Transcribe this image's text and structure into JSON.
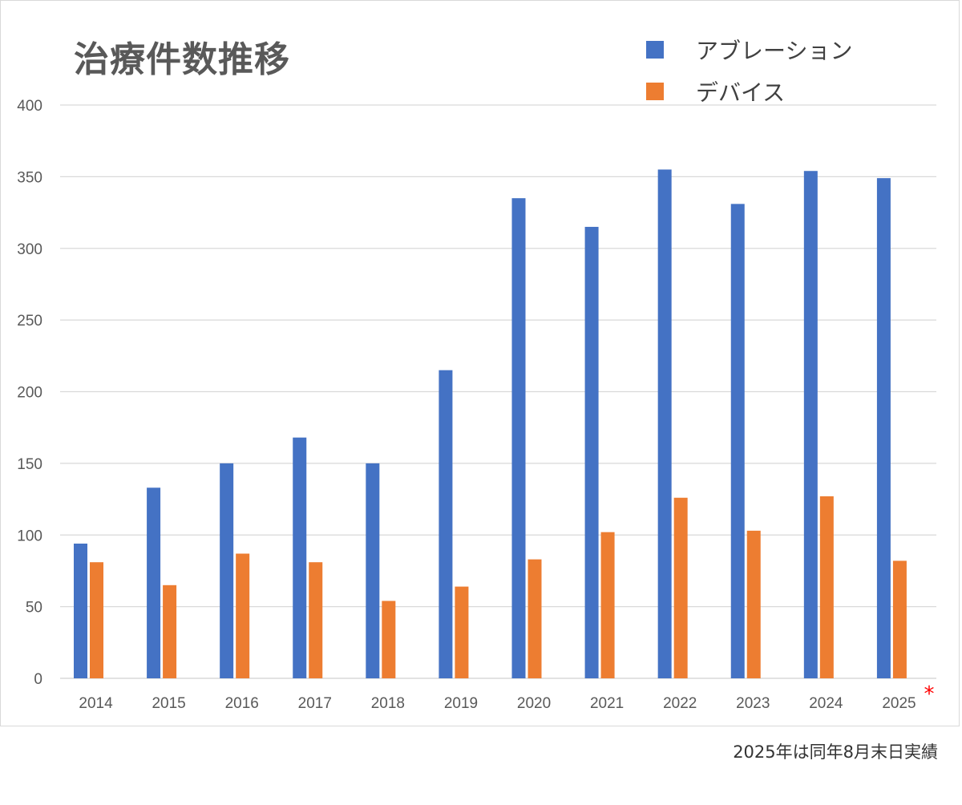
{
  "chart_data": {
    "type": "bar",
    "title": "治療件数推移",
    "categories": [
      "2014",
      "2015",
      "2016",
      "2017",
      "2018",
      "2019",
      "2020",
      "2021",
      "2022",
      "2023",
      "2024",
      "2025"
    ],
    "category_marks": {
      "2025": "*"
    },
    "series": [
      {
        "name": "アブレーション",
        "color": "#4472c4",
        "values": [
          94,
          133,
          150,
          168,
          150,
          215,
          335,
          315,
          355,
          331,
          354,
          349
        ]
      },
      {
        "name": "デバイス",
        "color": "#ed7d31",
        "values": [
          81,
          65,
          87,
          81,
          54,
          64,
          83,
          102,
          126,
          103,
          127,
          82
        ]
      }
    ],
    "ylim": [
      0,
      400
    ],
    "yticks": [
      0,
      50,
      100,
      150,
      200,
      250,
      300,
      350,
      400
    ],
    "grid": true,
    "legend_position": "top-right",
    "mark_color": "#ff0000",
    "footnote": "2025年は同年8月末日実績"
  }
}
